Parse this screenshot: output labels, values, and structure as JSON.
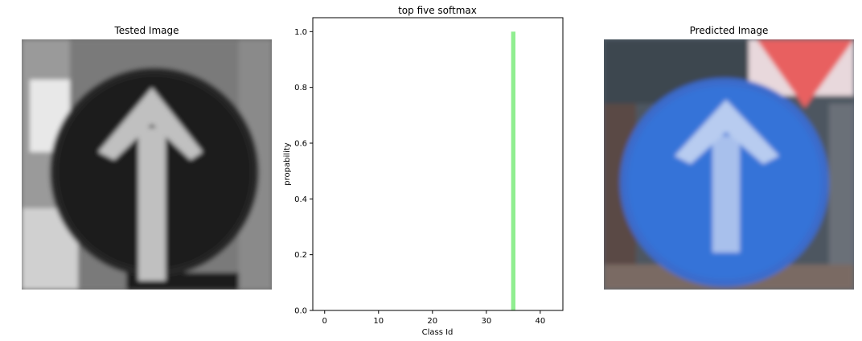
{
  "left_panel": {
    "title": "Tested Image",
    "image_name": "ahead-only-sign-grayscale"
  },
  "right_panel": {
    "title": "Predicted Image",
    "image_name": "ahead-only-sign-color"
  },
  "chart_data": {
    "type": "bar",
    "title": "top five softmax",
    "xlabel": "Class Id",
    "ylabel": "propability",
    "xlim": [
      -2.2,
      44.2
    ],
    "ylim": [
      0,
      1.05
    ],
    "xticks": [
      0,
      10,
      20,
      30,
      40
    ],
    "yticks": [
      0.0,
      0.2,
      0.4,
      0.6,
      0.8,
      1.0
    ],
    "x": [
      35
    ],
    "values": [
      1.0
    ],
    "bar_color": "#90ee90"
  }
}
